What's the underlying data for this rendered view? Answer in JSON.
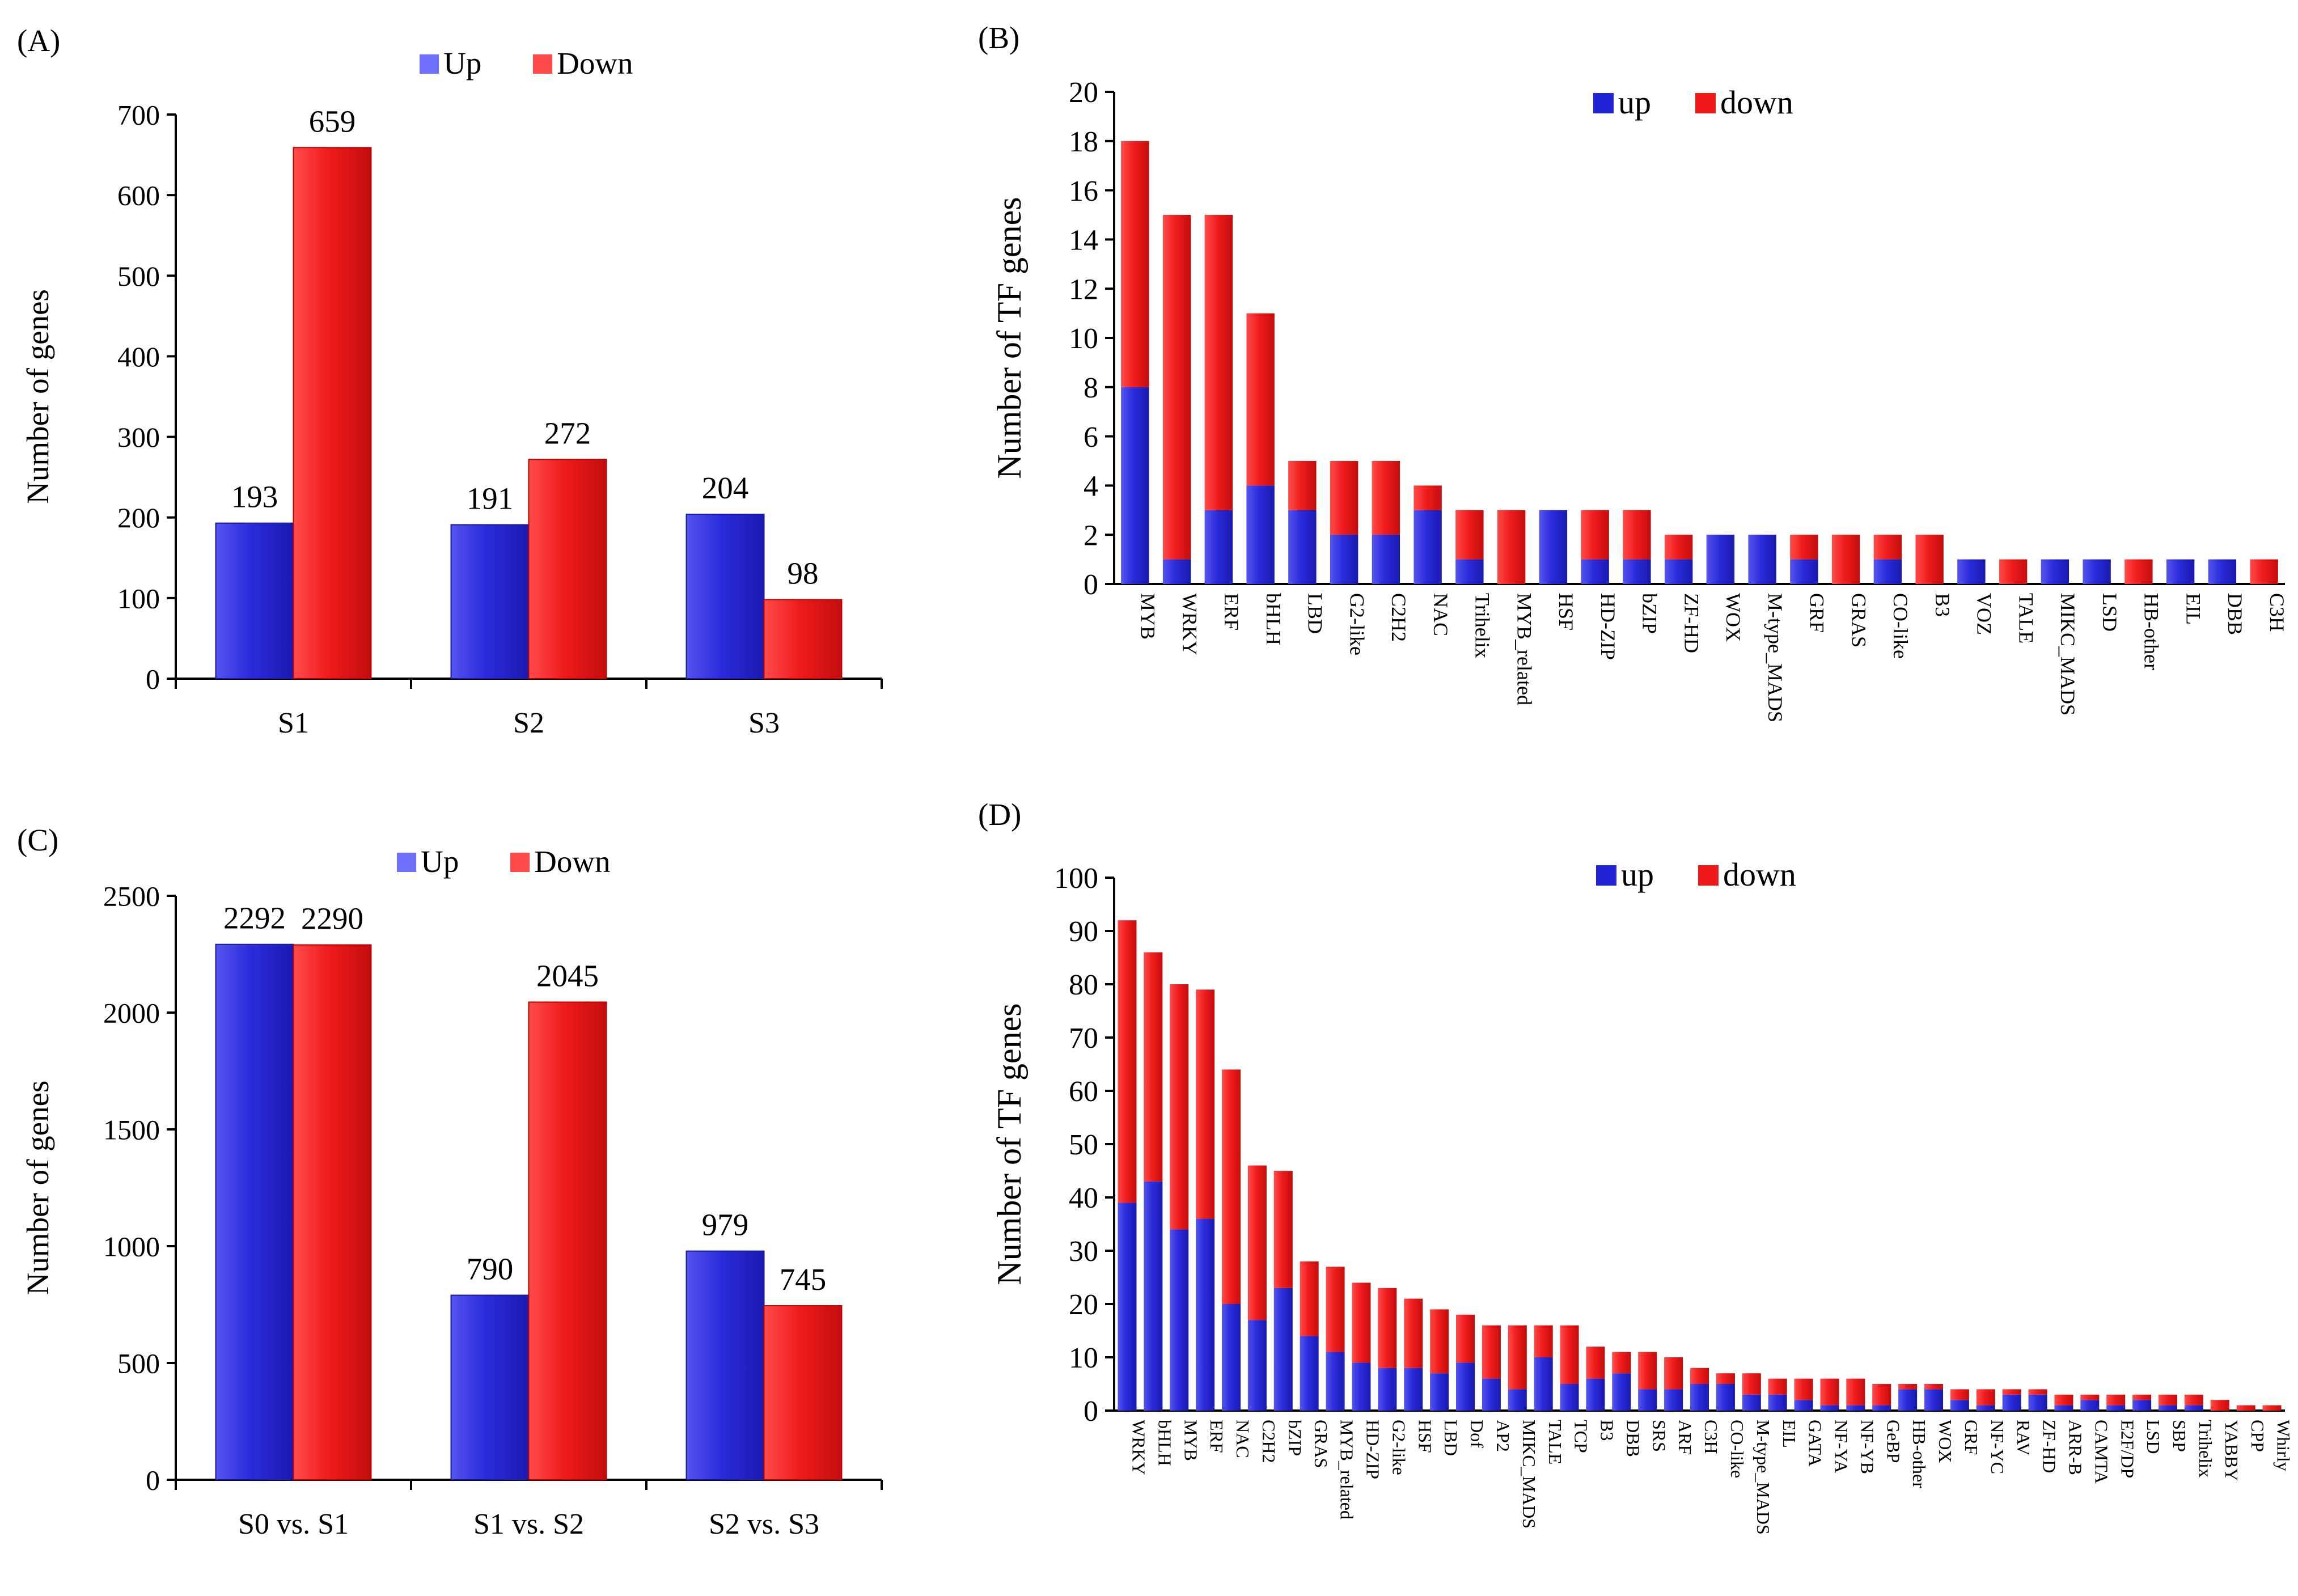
{
  "colors": {
    "up_fill": "#2323d6",
    "down_fill": "#ef1818",
    "up_legend": "#7070ff",
    "down_legend": "#ff4a4a"
  },
  "chart_data": [
    {
      "id": "A",
      "panel_label": "(A)",
      "type": "bar",
      "categories": [
        "S1",
        "S2",
        "S3"
      ],
      "series": [
        {
          "name": "Up",
          "values": [
            193,
            191,
            204
          ]
        },
        {
          "name": "Down",
          "values": [
            659,
            272,
            98
          ]
        }
      ],
      "ylabel": "Number of genes",
      "ylim": [
        0,
        700
      ],
      "yticks": [
        0,
        100,
        200,
        300,
        400,
        500,
        600,
        700
      ],
      "legend": [
        "Up",
        "Down"
      ]
    },
    {
      "id": "B",
      "panel_label": "(B)",
      "type": "stacked-bar",
      "categories": [
        "MYB",
        "WRKY",
        "ERF",
        "bHLH",
        "LBD",
        "G2-like",
        "C2H2",
        "NAC",
        "Trihelix",
        "MYB_related",
        "HSF",
        "HD-ZIP",
        "bZIP",
        "ZF-HD",
        "WOX",
        "M-type_MADS",
        "GRF",
        "GRAS",
        "CO-like",
        "B3",
        "VOZ",
        "TALE",
        "MIKC_MADS",
        "LSD",
        "HB-other",
        "EIL",
        "DBB",
        "C3H"
      ],
      "series": [
        {
          "name": "up",
          "values": [
            8,
            1,
            3,
            4,
            3,
            2,
            2,
            3,
            1,
            0,
            3,
            1,
            1,
            1,
            2,
            2,
            1,
            0,
            1,
            0,
            1,
            0,
            1,
            1,
            0,
            1,
            1,
            0
          ]
        },
        {
          "name": "down",
          "values": [
            10,
            14,
            12,
            7,
            2,
            3,
            3,
            1,
            2,
            3,
            0,
            2,
            2,
            1,
            0,
            0,
            1,
            2,
            1,
            2,
            0,
            1,
            0,
            0,
            1,
            0,
            0,
            1
          ]
        }
      ],
      "ylabel": "Number of TF genes",
      "ylim": [
        0,
        20
      ],
      "yticks": [
        0,
        2,
        4,
        6,
        8,
        10,
        12,
        14,
        16,
        18,
        20
      ],
      "legend": [
        "up",
        "down"
      ]
    },
    {
      "id": "C",
      "panel_label": "(C)",
      "type": "bar",
      "categories": [
        "S0 vs. S1",
        "S1 vs. S2",
        "S2 vs. S3"
      ],
      "series": [
        {
          "name": "Up",
          "values": [
            2292,
            790,
            979
          ]
        },
        {
          "name": "Down",
          "values": [
            2290,
            2045,
            745
          ]
        }
      ],
      "ylabel": "Number of genes",
      "ylim": [
        0,
        2500
      ],
      "yticks": [
        0,
        500,
        1000,
        1500,
        2000,
        2500
      ],
      "legend": [
        "Up",
        "Down"
      ]
    },
    {
      "id": "D",
      "panel_label": "(D)",
      "type": "stacked-bar",
      "categories": [
        "WRKY",
        "bHLH",
        "MYB",
        "ERF",
        "NAC",
        "C2H2",
        "bZIP",
        "GRAS",
        "MYB_related",
        "HD-ZIP",
        "G2-like",
        "HSF",
        "LBD",
        "Dof",
        "AP2",
        "MIKC_MADS",
        "TALE",
        "TCP",
        "B3",
        "DBB",
        "SRS",
        "ARF",
        "C3H",
        "CO-like",
        "M-type_MADS",
        "EIL",
        "GATA",
        "NF-YA",
        "NF-YB",
        "GeBP",
        "HB-other",
        "WOX",
        "GRF",
        "NF-YC",
        "RAV",
        "ZF-HD",
        "ARR-B",
        "CAMTA",
        "E2F/DP",
        "LSD",
        "SBP",
        "Trihelix",
        "YABBY",
        "CPP",
        "Whirly"
      ],
      "series": [
        {
          "name": "up",
          "values": [
            39,
            43,
            34,
            36,
            20,
            17,
            23,
            14,
            11,
            9,
            8,
            8,
            7,
            9,
            6,
            4,
            10,
            5,
            6,
            7,
            4,
            4,
            5,
            5,
            3,
            3,
            2,
            1,
            1,
            1,
            4,
            4,
            2,
            1,
            3,
            3,
            1,
            2,
            1,
            2,
            1,
            1,
            0,
            0,
            0
          ]
        },
        {
          "name": "down",
          "values": [
            53,
            43,
            46,
            43,
            44,
            29,
            22,
            14,
            16,
            15,
            15,
            13,
            12,
            9,
            10,
            12,
            6,
            11,
            6,
            4,
            7,
            6,
            3,
            2,
            4,
            3,
            4,
            5,
            5,
            4,
            1,
            1,
            2,
            3,
            1,
            1,
            2,
            1,
            2,
            1,
            2,
            2,
            2,
            1,
            1
          ]
        }
      ],
      "ylabel": "Number of TF genes",
      "ylim": [
        0,
        100
      ],
      "yticks": [
        0,
        10,
        20,
        30,
        40,
        50,
        60,
        70,
        80,
        90,
        100
      ],
      "legend": [
        "up",
        "down"
      ]
    }
  ]
}
